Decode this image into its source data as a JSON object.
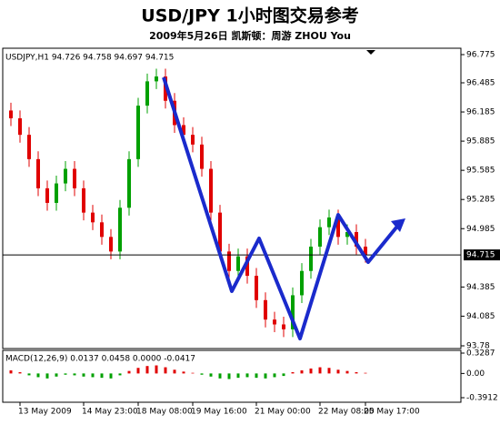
{
  "chart_data": {
    "type": "candlestick",
    "title": "USD/JPY 1小时图交易参考",
    "subtitle": "2009年5月26日 凯斯顿：周游 ZHOU You",
    "header": "USDJPY,H1  94.726 94.758 94.697 94.715",
    "categories": [
      null,
      "13 May 2009",
      null,
      null,
      null,
      null,
      null,
      null,
      "14 May 23:00",
      null,
      null,
      null,
      null,
      null,
      "18 May 08:00",
      null,
      null,
      null,
      null,
      null,
      "19 May 16:00",
      null,
      null,
      null,
      null,
      null,
      null,
      "21 May 00:00",
      null,
      null,
      null,
      null,
      null,
      null,
      "22 May 08:00",
      null,
      null,
      null,
      null,
      "25 May 17:00"
    ],
    "open": [
      96.2,
      96.12,
      95.95,
      95.7,
      95.4,
      95.25,
      95.45,
      95.6,
      95.4,
      95.15,
      95.05,
      94.9,
      94.75,
      95.2,
      95.7,
      96.25,
      96.5,
      96.55,
      96.3,
      96.05,
      95.95,
      95.85,
      95.6,
      95.15,
      94.75,
      94.55,
      94.7,
      94.5,
      94.25,
      94.05,
      94.0,
      93.95,
      94.3,
      94.55,
      94.8,
      95.0,
      95.1,
      94.9,
      94.95,
      94.8
    ],
    "high": [
      96.28,
      96.2,
      96.03,
      95.78,
      95.48,
      95.53,
      95.68,
      95.68,
      95.48,
      95.23,
      95.13,
      94.98,
      95.28,
      95.78,
      96.33,
      96.58,
      96.63,
      96.63,
      96.38,
      96.13,
      96.03,
      95.93,
      95.68,
      95.23,
      94.83,
      94.78,
      94.78,
      94.58,
      94.33,
      94.13,
      94.08,
      94.38,
      94.63,
      94.88,
      95.08,
      95.18,
      95.18,
      95.03,
      95.03,
      94.88
    ],
    "low": [
      96.04,
      95.87,
      95.62,
      95.32,
      95.17,
      95.17,
      95.37,
      95.32,
      95.07,
      94.97,
      94.82,
      94.67,
      94.67,
      95.12,
      95.62,
      96.17,
      96.42,
      96.22,
      95.97,
      95.87,
      95.77,
      95.52,
      95.07,
      94.67,
      94.47,
      94.47,
      94.42,
      94.17,
      93.97,
      93.92,
      93.87,
      93.87,
      94.22,
      94.47,
      94.72,
      94.92,
      94.82,
      94.82,
      94.72,
      94.635
    ],
    "close": [
      96.12,
      95.95,
      95.7,
      95.4,
      95.25,
      95.45,
      95.6,
      95.4,
      95.15,
      95.05,
      94.9,
      94.75,
      95.2,
      95.7,
      96.25,
      96.5,
      96.55,
      96.3,
      96.05,
      95.95,
      95.85,
      95.6,
      95.15,
      94.75,
      94.55,
      94.7,
      94.5,
      94.25,
      94.05,
      94.0,
      93.95,
      94.3,
      94.55,
      94.8,
      95.0,
      95.1,
      94.9,
      94.95,
      94.8,
      94.715
    ],
    "up_color": "#00a000",
    "down_color": "#e00000",
    "ylim": [
      93.78,
      96.775
    ],
    "yticks": [
      93.78,
      94.085,
      94.385,
      94.985,
      95.285,
      95.585,
      95.885,
      96.185,
      96.485,
      96.775
    ],
    "last_price": 94.715,
    "macd": {
      "label": "MACD(12,26,9) 0.0137 0.0458 0.0000 -0.0417",
      "values": [
        0.05,
        0.02,
        -0.03,
        -0.06,
        -0.08,
        -0.05,
        -0.02,
        -0.03,
        -0.05,
        -0.06,
        -0.07,
        -0.08,
        -0.03,
        0.04,
        0.09,
        0.12,
        0.13,
        0.1,
        0.06,
        0.03,
        0.01,
        -0.02,
        -0.05,
        -0.08,
        -0.09,
        -0.07,
        -0.06,
        -0.07,
        -0.08,
        -0.06,
        -0.04,
        0.02,
        0.05,
        0.08,
        0.1,
        0.09,
        0.06,
        0.04,
        0.02,
        0.01
      ],
      "ylim": [
        -0.3912,
        0.3287
      ],
      "yticks": [
        -0.3912,
        {
          "value": 0,
          "label": "0.00"
        },
        0.3287
      ]
    }
  }
}
